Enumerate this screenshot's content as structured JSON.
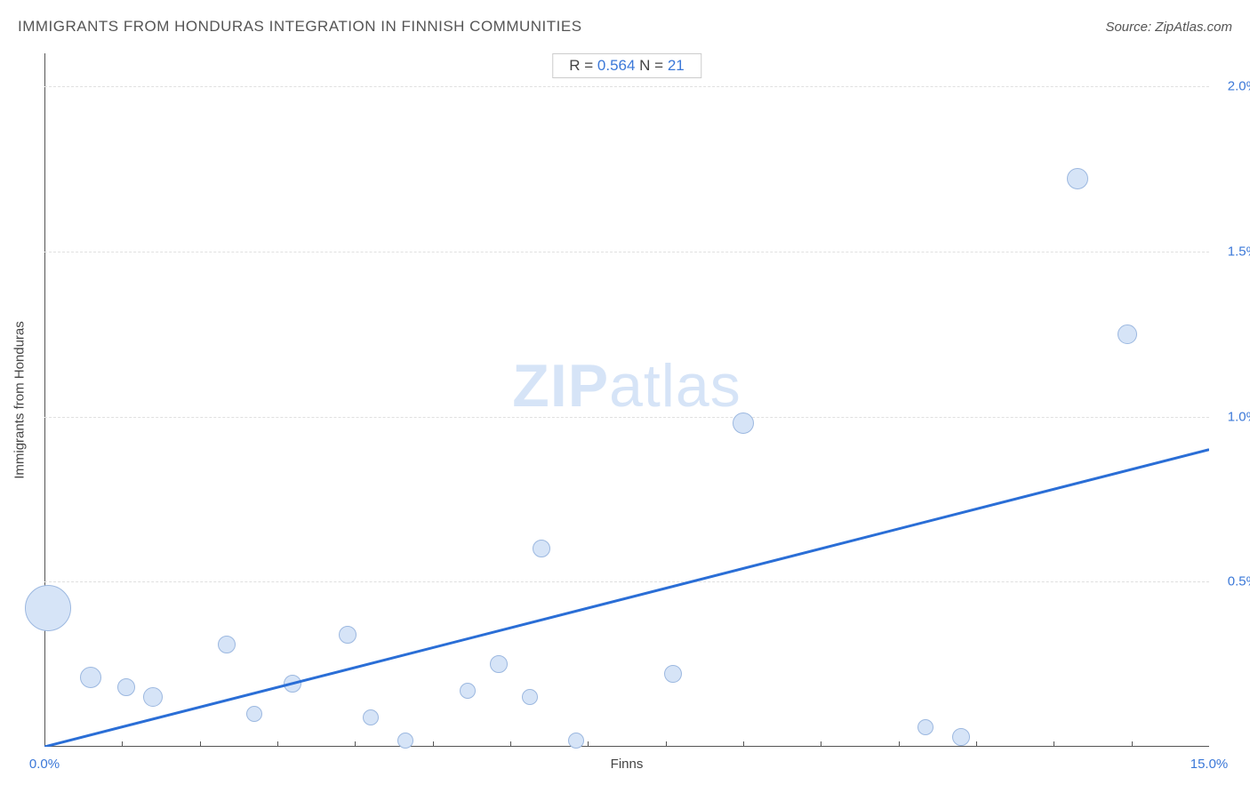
{
  "title": "IMMIGRANTS FROM HONDURAS INTEGRATION IN FINNISH COMMUNITIES",
  "source": "Source: ZipAtlas.com",
  "watermark_bold": "ZIP",
  "watermark_light": "atlas",
  "stats": {
    "r_label": "R = ",
    "r_value": "0.564",
    "n_label": "   N = ",
    "n_value": "21"
  },
  "chart": {
    "type": "scatter",
    "xlabel": "Finns",
    "ylabel": "Immigrants from Honduras",
    "xlim": [
      0.0,
      15.0
    ],
    "ylim": [
      0.0,
      2.1
    ],
    "x_tick_labels": {
      "min": "0.0%",
      "max": "15.0%"
    },
    "x_minor_ticks": [
      1,
      2,
      3,
      4,
      5,
      6,
      7,
      8,
      9,
      10,
      11,
      12,
      13,
      14
    ],
    "y_gridlines": [
      0.5,
      1.0,
      1.5,
      2.0
    ],
    "y_tick_labels": [
      "0.5%",
      "1.0%",
      "1.5%",
      "2.0%"
    ],
    "background_color": "#ffffff",
    "grid_color": "#e0e0e0",
    "bubble_fill": "#d6e4f7",
    "bubble_stroke": "#9cb8e0",
    "trend_color": "#2a6ed6",
    "trend_width": 3,
    "trend_start": [
      0.0,
      0.0
    ],
    "trend_end": [
      15.0,
      0.9
    ],
    "label_color": "#3b78d8",
    "axis_color": "#555555",
    "points": [
      {
        "x": 0.05,
        "y": 0.42,
        "r": 26
      },
      {
        "x": 0.6,
        "y": 0.21,
        "r": 12
      },
      {
        "x": 1.05,
        "y": 0.18,
        "r": 10
      },
      {
        "x": 1.4,
        "y": 0.15,
        "r": 11
      },
      {
        "x": 2.35,
        "y": 0.31,
        "r": 10
      },
      {
        "x": 2.7,
        "y": 0.1,
        "r": 9
      },
      {
        "x": 3.2,
        "y": 0.19,
        "r": 10
      },
      {
        "x": 3.9,
        "y": 0.34,
        "r": 10
      },
      {
        "x": 4.2,
        "y": 0.09,
        "r": 9
      },
      {
        "x": 4.65,
        "y": 0.02,
        "r": 9
      },
      {
        "x": 5.45,
        "y": 0.17,
        "r": 9
      },
      {
        "x": 5.85,
        "y": 0.25,
        "r": 10
      },
      {
        "x": 6.25,
        "y": 0.15,
        "r": 9
      },
      {
        "x": 6.4,
        "y": 0.6,
        "r": 10
      },
      {
        "x": 6.85,
        "y": 0.02,
        "r": 9
      },
      {
        "x": 8.1,
        "y": 0.22,
        "r": 10
      },
      {
        "x": 9.0,
        "y": 0.98,
        "r": 12
      },
      {
        "x": 11.35,
        "y": 0.06,
        "r": 9
      },
      {
        "x": 11.8,
        "y": 0.03,
        "r": 10
      },
      {
        "x": 13.3,
        "y": 1.72,
        "r": 12
      },
      {
        "x": 13.95,
        "y": 1.25,
        "r": 11
      }
    ]
  }
}
